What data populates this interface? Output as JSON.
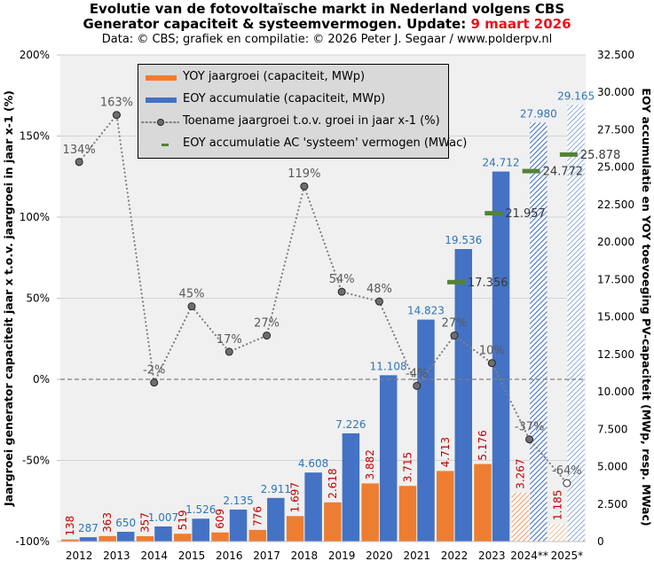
{
  "header": {
    "title_line1": "Evolutie van de fotovoltaïsche markt in Nederland volgens CBS",
    "title_line2_prefix": "Generator capaciteit & systeemvermogen. Update: ",
    "title_line2_date": "9 maart 2026",
    "subtitle": "Data: © CBS; grafiek en compilatie: © 2026 Peter J. Segaar / www.polderpv.nl"
  },
  "colors": {
    "yoy_bar": "#ed7d31",
    "eoy_bar": "#4472c4",
    "growth_line": "#808080",
    "ac_marker": "#548235",
    "yoy_label": "#c00000",
    "eoy_label": "#2e75b6",
    "plot_bg": "#f0f0f0",
    "date_red": "#e8141c"
  },
  "legend": {
    "items": [
      {
        "label": "YOY jaargroei (capaciteit, MWp)",
        "type": "bar-orange"
      },
      {
        "label": "EOY accumulatie (capaciteit, MWp)",
        "type": "bar-blue"
      },
      {
        "label": "Toename jaargroei t.o.v. groei in jaar x-1 (%)",
        "type": "dotted-line-marker"
      },
      {
        "label": "EOY accumulatie AC 'systeem' vermogen (MWac)",
        "type": "green-dash"
      }
    ]
  },
  "chart_data": {
    "type": "bar",
    "title": "Evolutie van de fotovoltaïsche markt in Nederland volgens CBS",
    "categories": [
      "2012",
      "2013",
      "2014",
      "2015",
      "2016",
      "2017",
      "2018",
      "2019",
      "2020",
      "2021",
      "2022",
      "2023",
      "2024**",
      "2025*"
    ],
    "series": [
      {
        "name": "YOY jaargroei (capaciteit, MWp)",
        "axis": "right",
        "kind": "bar",
        "values": [
          138,
          363,
          357,
          519,
          609,
          776,
          1697,
          2618,
          3882,
          3715,
          4713,
          5176,
          3267,
          1185
        ],
        "labels": [
          "138",
          "363",
          "357",
          "519",
          "609",
          "776",
          "1.697",
          "2.618",
          "3.882",
          "3.715",
          "4.713",
          "5.176",
          "3.267",
          "1.185"
        ],
        "hatched": [
          false,
          false,
          false,
          false,
          false,
          false,
          false,
          false,
          false,
          false,
          false,
          false,
          true,
          true
        ]
      },
      {
        "name": "EOY accumulatie (capaciteit, MWp)",
        "axis": "right",
        "kind": "bar",
        "values": [
          287,
          650,
          1007,
          1526,
          2135,
          2911,
          4608,
          7226,
          11108,
          14823,
          19536,
          24712,
          27980,
          29165
        ],
        "labels": [
          "287",
          "650",
          "1.007",
          "1.526",
          "2.135",
          "2.911",
          "4.608",
          "7.226",
          "11.108",
          "14.823",
          "19.536",
          "24.712",
          "27.980",
          "29.165"
        ],
        "hatched": [
          false,
          false,
          false,
          false,
          false,
          false,
          false,
          false,
          false,
          false,
          false,
          false,
          true,
          true
        ]
      },
      {
        "name": "Toename jaargroei t.o.v. groei in jaar x-1 (%)",
        "axis": "left",
        "kind": "line",
        "values": [
          134,
          163,
          -2,
          45,
          17,
          27,
          119,
          54,
          48,
          -4,
          27,
          10,
          -37,
          -64
        ],
        "labels": [
          "134%",
          "163%",
          "-2%",
          "45%",
          "17%",
          "27%",
          "119%",
          "54%",
          "48%",
          "-4%",
          "27%",
          "10%",
          "-37%",
          "-64%"
        ]
      },
      {
        "name": "EOY accumulatie AC 'systeem' vermogen (MWac)",
        "axis": "right",
        "kind": "marker",
        "values": [
          null,
          null,
          null,
          null,
          null,
          null,
          null,
          null,
          null,
          null,
          17356,
          21957,
          24772,
          25878
        ],
        "labels": [
          null,
          null,
          null,
          null,
          null,
          null,
          null,
          null,
          null,
          null,
          "17.356",
          "21.957",
          "24.772",
          "25.878"
        ]
      }
    ],
    "left_axis": {
      "label": "Jaargroei generator capaciteit jaar x t.o.v. jaargroei in jaar x-1 (%)",
      "range": [
        -100,
        200
      ],
      "ticks": [
        "-100%",
        "-50%",
        "0%",
        "50%",
        "100%",
        "150%",
        "200%"
      ],
      "tick_values": [
        -100,
        -50,
        0,
        50,
        100,
        150,
        200
      ]
    },
    "right_axis": {
      "label": "EOY accumulatie en YOY toevoeging PV-capaciteit (MWp, resp. MWac)",
      "range": [
        0,
        32500
      ],
      "ticks": [
        "0",
        "2.500",
        "5.000",
        "7.500",
        "10.000",
        "12.500",
        "15.000",
        "17.500",
        "20.000",
        "22.500",
        "25.000",
        "27.500",
        "30.000",
        "32.500"
      ],
      "tick_values": [
        0,
        2500,
        5000,
        7500,
        10000,
        12500,
        15000,
        17500,
        20000,
        22500,
        25000,
        27500,
        30000,
        32500
      ]
    },
    "xlabel": "",
    "grid": true,
    "legend_position": "top-center"
  }
}
